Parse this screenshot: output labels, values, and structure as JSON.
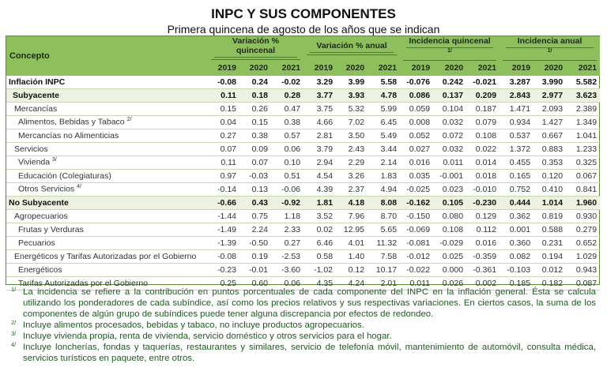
{
  "title": "INPC Y SUS COMPONENTES",
  "subtitle": "Primera quincena de agosto de los años que se indican",
  "header": {
    "concept": "Concepto",
    "groups": [
      {
        "label": "Variación % quincenal",
        "note": ""
      },
      {
        "label": "Variación % anual",
        "note": ""
      },
      {
        "label": "Incidencia quincenal",
        "note": "1/"
      },
      {
        "label": "Incidencia anual",
        "note": "1/"
      }
    ],
    "years": [
      "2019",
      "2020",
      "2021"
    ]
  },
  "rows": [
    {
      "concept": "Inflación INPC",
      "note": "",
      "level": 0,
      "bold": true,
      "highlight": false,
      "values": [
        "-0.08",
        "0.24",
        "-0.02",
        "3.29",
        "3.99",
        "5.58",
        "-0.076",
        "0.242",
        "-0.021",
        "3.287",
        "3.990",
        "5.582"
      ]
    },
    {
      "concept": "Subyacente",
      "note": "",
      "level": 1,
      "bold": true,
      "highlight": true,
      "values": [
        "0.11",
        "0.18",
        "0.28",
        "3.77",
        "3.93",
        "4.78",
        "0.086",
        "0.137",
        "0.209",
        "2.843",
        "2.977",
        "3.623"
      ]
    },
    {
      "concept": "Mercancías",
      "note": "",
      "level": 2,
      "bold": false,
      "highlight": false,
      "values": [
        "0.15",
        "0.26",
        "0.47",
        "3.75",
        "5.32",
        "5.99",
        "0.059",
        "0.104",
        "0.187",
        "1.471",
        "2.093",
        "2.389"
      ]
    },
    {
      "concept": "Alimentos, Bebidas y Tabaco",
      "note": "2/",
      "level": 3,
      "bold": false,
      "highlight": false,
      "values": [
        "0.04",
        "0.15",
        "0.38",
        "4.66",
        "7.02",
        "6.45",
        "0.008",
        "0.032",
        "0.079",
        "0.934",
        "1.427",
        "1.349"
      ]
    },
    {
      "concept": "Mercancías no Alimenticias",
      "note": "",
      "level": 3,
      "bold": false,
      "highlight": false,
      "values": [
        "0.27",
        "0.38",
        "0.57",
        "2.81",
        "3.50",
        "5.49",
        "0.052",
        "0.072",
        "0.108",
        "0.537",
        "0.667",
        "1.041"
      ]
    },
    {
      "concept": "Servicios",
      "note": "",
      "level": 2,
      "bold": false,
      "highlight": false,
      "values": [
        "0.07",
        "0.09",
        "0.06",
        "3.79",
        "2.43",
        "3.44",
        "0.027",
        "0.032",
        "0.022",
        "1.372",
        "0.883",
        "1.233"
      ]
    },
    {
      "concept": "Vivienda",
      "note": "3/",
      "level": 3,
      "bold": false,
      "highlight": false,
      "values": [
        "0.11",
        "0.07",
        "0.10",
        "2.94",
        "2.29",
        "2.14",
        "0.016",
        "0.011",
        "0.014",
        "0.455",
        "0.353",
        "0.325"
      ]
    },
    {
      "concept": "Educación (Colegiaturas)",
      "note": "",
      "level": 3,
      "bold": false,
      "highlight": false,
      "values": [
        "0.97",
        "-0.03",
        "0.51",
        "4.54",
        "3.26",
        "1.83",
        "0.035",
        "-0.001",
        "0.018",
        "0.165",
        "0.120",
        "0.067"
      ]
    },
    {
      "concept": "Otros Servicios",
      "note": "4/",
      "level": 3,
      "bold": false,
      "highlight": false,
      "values": [
        "-0.14",
        "0.13",
        "-0.06",
        "4.39",
        "2.37",
        "4.94",
        "-0.025",
        "0.023",
        "-0.010",
        "0.752",
        "0.410",
        "0.841"
      ]
    },
    {
      "concept": "No Subyacente",
      "note": "",
      "level": 0,
      "bold": true,
      "highlight": true,
      "values": [
        "-0.66",
        "0.43",
        "-0.92",
        "1.81",
        "4.18",
        "8.08",
        "-0.162",
        "0.105",
        "-0.230",
        "0.444",
        "1.014",
        "1.960"
      ]
    },
    {
      "concept": "Agropecuarios",
      "note": "",
      "level": 2,
      "bold": false,
      "highlight": false,
      "values": [
        "-1.44",
        "0.75",
        "1.18",
        "3.52",
        "7.96",
        "8.70",
        "-0.150",
        "0.080",
        "0.129",
        "0.362",
        "0.819",
        "0.930"
      ]
    },
    {
      "concept": "Frutas y Verduras",
      "note": "",
      "level": 3,
      "bold": false,
      "highlight": false,
      "values": [
        "-1.49",
        "2.24",
        "2.33",
        "0.02",
        "12.95",
        "5.65",
        "-0.069",
        "0.108",
        "0.112",
        "0.001",
        "0.588",
        "0.279"
      ]
    },
    {
      "concept": "Pecuarios",
      "note": "",
      "level": 3,
      "bold": false,
      "highlight": false,
      "values": [
        "-1.39",
        "-0.50",
        "0.27",
        "6.46",
        "4.01",
        "11.32",
        "-0.081",
        "-0.029",
        "0.016",
        "0.360",
        "0.231",
        "0.652"
      ]
    },
    {
      "concept": "Energéticos y Tarifas Autorizadas por el Gobierno",
      "note": "",
      "level": 2,
      "bold": false,
      "highlight": false,
      "values": [
        "-0.08",
        "0.19",
        "-2.53",
        "0.58",
        "1.40",
        "7.58",
        "-0.012",
        "0.025",
        "-0.359",
        "0.082",
        "0.194",
        "1.029"
      ]
    },
    {
      "concept": "Energéticos",
      "note": "",
      "level": 3,
      "bold": false,
      "highlight": false,
      "values": [
        "-0.23",
        "-0.01",
        "-3.60",
        "-1.02",
        "0.12",
        "10.17",
        "-0.022",
        "0.000",
        "-0.361",
        "-0.103",
        "0.012",
        "0.943"
      ]
    },
    {
      "concept": "Tarifas Autorizadas por el Gobierno",
      "note": "",
      "level": 3,
      "bold": false,
      "highlight": false,
      "values": [
        "0.25",
        "0.60",
        "0.06",
        "4.35",
        "4.24",
        "2.01",
        "0.011",
        "0.026",
        "0.002",
        "0.185",
        "0.182",
        "0.087"
      ]
    }
  ],
  "footnotes": [
    {
      "mark": "1/",
      "text": "La incidencia se refiere a la contribución en puntos porcentuales de cada componente del INPC en la inflación general. Ésta se calcula utilizando los ponderadores de cada subíndice, así como los precios relativos y sus respectivas variaciones. En ciertos casos, la suma de los componentes de algún grupo de subíndices puede tener alguna discrepancia por efectos de redondeo."
    },
    {
      "mark": "2/",
      "text": "Incluye alimentos procesados, bebidas y tabaco, no incluye productos agropecuarios."
    },
    {
      "mark": "3/",
      "text": "Incluye vivienda propia, renta de vivienda, servicio doméstico y otros servicios para el hogar."
    },
    {
      "mark": "4/",
      "text": "Incluye loncherías, fondas y taquerías, restaurantes y similares, servicio de telefonía móvil, mantenimiento de automóvil, consulta médica, servicios turísticos en paquete, entre otros."
    }
  ],
  "colors": {
    "header_green": "#8dbf5c",
    "highlight_row": "#eef2e0",
    "footnote_text": "#1f5a1f"
  }
}
